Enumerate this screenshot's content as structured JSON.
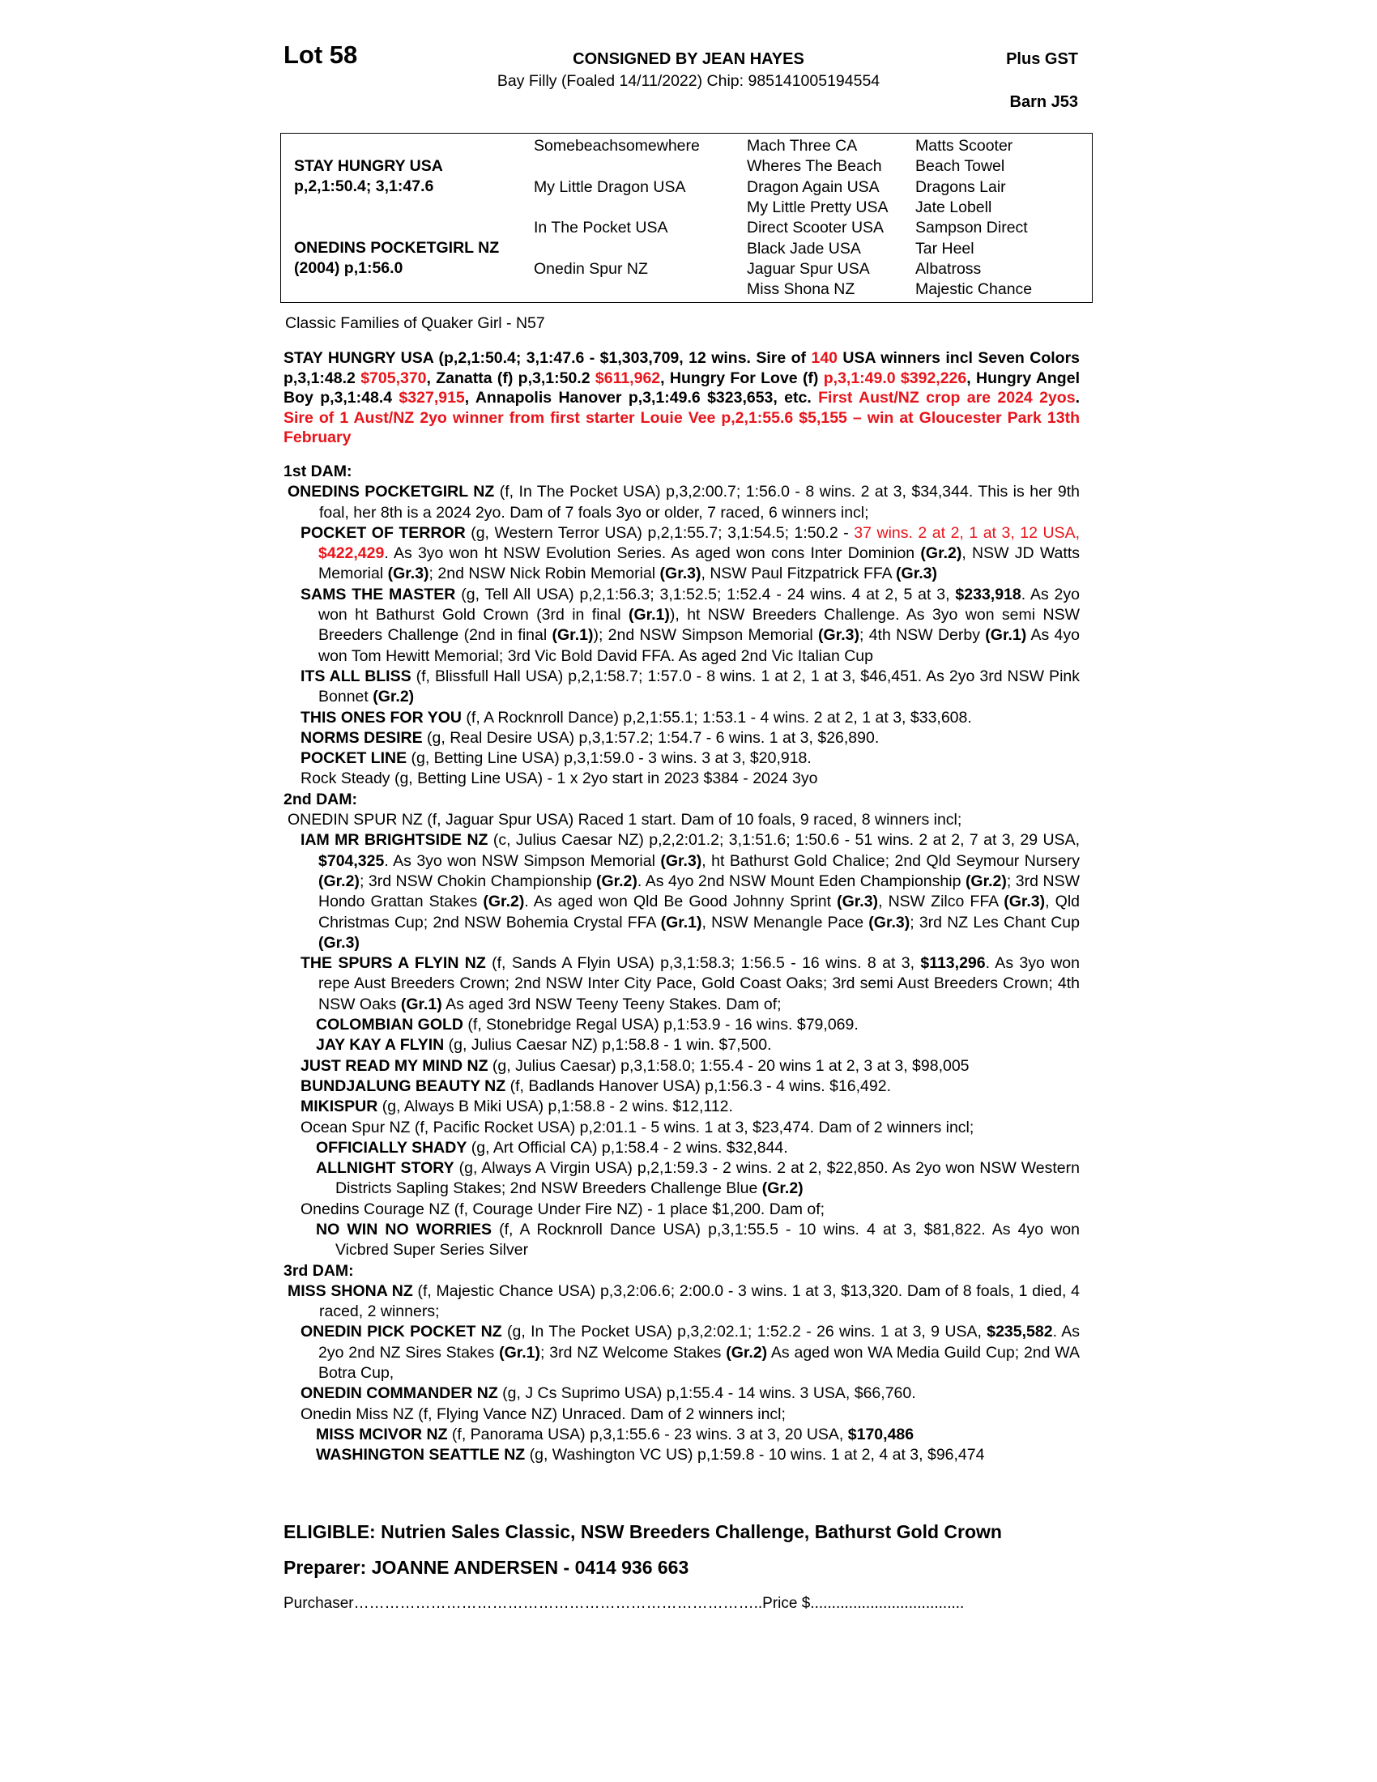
{
  "header": {
    "lot": "Lot 58",
    "consigned": "CONSIGNED BY JEAN HAYES",
    "plus_gst": "Plus GST",
    "description": "Bay Filly (Foaled 14/11/2022) Chip: 985141005194554",
    "barn": "Barn J53"
  },
  "pedigree": {
    "sire_name": "STAY HUNGRY USA",
    "sire_record": "p,2,1:50.4; 3,1:47.6",
    "dam_name": "ONEDINS POCKETGIRL NZ",
    "dam_record": "(2004) p,1:56.0",
    "col2": [
      "Somebeachsomewhere",
      "My Little Dragon USA",
      "In The Pocket USA",
      "Onedin Spur NZ"
    ],
    "col3": [
      "Mach Three CA",
      "Wheres The Beach",
      "Dragon Again USA",
      "My Little Pretty USA",
      "Direct Scooter USA",
      "Black Jade USA",
      "Jaguar Spur USA",
      "Miss Shona NZ"
    ],
    "col4": [
      "Matts Scooter",
      "Beach Towel",
      "Dragons Lair",
      "Jate Lobell",
      "Sampson Direct",
      "Tar Heel",
      "Albatross",
      "Majestic Chance"
    ]
  },
  "families": "Classic Families of Quaker Girl - N57",
  "sire_paragraph": [
    [
      "STAY HUNGRY USA (p,2,1:50.4; 3,1:47.6 - $1,303,709, 12 wins. Sire of ",
      ""
    ],
    [
      "140",
      "r"
    ],
    [
      " USA winners incl Seven Colors p,3,1:48.2 ",
      ""
    ],
    [
      "$705,370",
      "r"
    ],
    [
      ", Zanatta (f) p,3,1:50.2 ",
      ""
    ],
    [
      "$611,962",
      "r"
    ],
    [
      ", Hungry For Love (f) ",
      ""
    ],
    [
      "p,3,1:49.0 $392,226",
      "r"
    ],
    [
      ", Hungry Angel Boy p,3,1:48.4 ",
      ""
    ],
    [
      "$327,915",
      "r"
    ],
    [
      ", Annapolis Hanover p,3,1:49.6 $323,653, etc. ",
      ""
    ],
    [
      "First Aust/NZ  crop are 2024 2yos",
      "r"
    ],
    [
      ". ",
      ""
    ],
    [
      "Sire of 1 Aust/NZ 2yo winner from first starter Louie Vee p,2,1:55.6 $5,155 – win at Gloucester Park 13th February",
      "r"
    ]
  ],
  "dams": [
    {
      "heading": "1st DAM:",
      "entries": [
        {
          "level": 0,
          "segs": [
            [
              "ONEDINS POCKETGIRL NZ",
              "b"
            ],
            [
              " (f, In The Pocket USA) p,3,2:00.7; 1:56.0 - 8 wins. 2 at 3, $34,344. This is her 9th foal, her 8th is a 2024 2yo. Dam of 7 foals 3yo or older, 7 raced, 6 winners incl;",
              ""
            ]
          ]
        },
        {
          "level": 1,
          "segs": [
            [
              "POCKET OF TERROR",
              "b"
            ],
            [
              " (g, Western Terror USA) p,2,1:55.7; 3,1:54.5; 1:50.2 - ",
              ""
            ],
            [
              "37 wins. 2 at 2, 1 at 3, 12 USA, ",
              "r"
            ],
            [
              "$422,429",
              "rb"
            ],
            [
              ". As 3yo won ht NSW Evolution Series. As aged won cons Inter Dominion ",
              ""
            ],
            [
              "(Gr.2)",
              "b"
            ],
            [
              ", NSW JD Watts Memorial ",
              ""
            ],
            [
              "(Gr.3)",
              "b"
            ],
            [
              "; 2nd NSW Nick Robin Memorial ",
              ""
            ],
            [
              "(Gr.3)",
              "b"
            ],
            [
              ", NSW Paul Fitzpatrick FFA ",
              ""
            ],
            [
              "(Gr.3)",
              "b"
            ]
          ]
        },
        {
          "level": 1,
          "segs": [
            [
              "SAMS THE MASTER",
              "b"
            ],
            [
              " (g, Tell All USA) p,2,1:56.3; 3,1:52.5; 1:52.4 - 24 wins. 4 at 2, 5 at 3, ",
              ""
            ],
            [
              "$233,918",
              "b"
            ],
            [
              ". As 2yo won ht Bathurst Gold Crown (3rd in final ",
              ""
            ],
            [
              "(Gr.1)",
              "b"
            ],
            [
              "), ht NSW Breeders Challenge. As 3yo won semi NSW Breeders Challenge (2nd in final ",
              ""
            ],
            [
              "(Gr.1)",
              "b"
            ],
            [
              "); 2nd NSW Simpson Memorial ",
              ""
            ],
            [
              "(Gr.3)",
              "b"
            ],
            [
              "; 4th NSW Derby ",
              ""
            ],
            [
              "(Gr.1)",
              "b"
            ],
            [
              " As 4yo won Tom Hewitt Memorial; 3rd Vic Bold David FFA. As aged 2nd Vic Italian Cup",
              ""
            ]
          ]
        },
        {
          "level": 1,
          "segs": [
            [
              "ITS ALL BLISS",
              "b"
            ],
            [
              " (f, Blissfull Hall USA) p,2,1:58.7; 1:57.0 - 8 wins. 1 at 2, 1 at 3, $46,451. As 2yo 3rd NSW Pink Bonnet ",
              ""
            ],
            [
              "(Gr.2)",
              "b"
            ]
          ]
        },
        {
          "level": 1,
          "segs": [
            [
              "THIS ONES FOR YOU",
              "b"
            ],
            [
              " (f, A Rocknroll Dance) p,2,1:55.1; 1:53.1 - 4 wins. 2 at 2, 1 at 3, $33,608.",
              ""
            ]
          ]
        },
        {
          "level": 1,
          "segs": [
            [
              "NORMS DESIRE",
              "b"
            ],
            [
              " (g, Real Desire USA) p,3,1:57.2; 1:54.7 - 6 wins. 1 at 3, $26,890.",
              ""
            ]
          ]
        },
        {
          "level": 1,
          "segs": [
            [
              "POCKET LINE",
              "b"
            ],
            [
              " (g, Betting Line USA) p,3,1:59.0 - 3 wins. 3 at 3, $20,918.",
              ""
            ]
          ]
        },
        {
          "level": 1,
          "segs": [
            [
              "Rock Steady (g, Betting Line USA) - 1 x 2yo start in 2023 $384 - 2024 3yo",
              ""
            ]
          ]
        }
      ]
    },
    {
      "heading": "2nd DAM:",
      "entries": [
        {
          "level": 0,
          "segs": [
            [
              "ONEDIN SPUR NZ (f, Jaguar Spur USA) Raced 1 start. Dam of 10 foals, 9 raced, 8 winners incl;",
              ""
            ]
          ]
        },
        {
          "level": 1,
          "segs": [
            [
              "IAM MR BRIGHTSIDE NZ",
              "b"
            ],
            [
              " (c, Julius Caesar NZ) p,2,2:01.2; 3,1:51.6; 1:50.6 - 51 wins. 2 at 2, 7 at 3, 29 USA, ",
              ""
            ],
            [
              "$704,325",
              "b"
            ],
            [
              ". As 3yo won NSW Simpson Memorial ",
              ""
            ],
            [
              "(Gr.3)",
              "b"
            ],
            [
              ", ht Bathurst Gold Chalice; 2nd Qld Seymour Nursery ",
              ""
            ],
            [
              "(Gr.2)",
              "b"
            ],
            [
              "; 3rd NSW Chokin Championship ",
              ""
            ],
            [
              "(Gr.2)",
              "b"
            ],
            [
              ". As 4yo 2nd NSW Mount Eden Championship ",
              ""
            ],
            [
              "(Gr.2)",
              "b"
            ],
            [
              "; 3rd NSW Hondo Grattan Stakes ",
              ""
            ],
            [
              "(Gr.2)",
              "b"
            ],
            [
              ". As aged won Qld Be Good Johnny Sprint ",
              ""
            ],
            [
              "(Gr.3)",
              "b"
            ],
            [
              ", NSW Zilco FFA ",
              ""
            ],
            [
              "(Gr.3)",
              "b"
            ],
            [
              ", Qld Christmas Cup; 2nd NSW Bohemia Crystal FFA ",
              ""
            ],
            [
              "(Gr.1)",
              "b"
            ],
            [
              ", NSW Menangle Pace ",
              ""
            ],
            [
              "(Gr.3)",
              "b"
            ],
            [
              "; 3rd NZ Les Chant Cup ",
              ""
            ],
            [
              "(Gr.3)",
              "b"
            ]
          ]
        },
        {
          "level": 1,
          "segs": [
            [
              "THE SPURS A FLYIN NZ",
              "b"
            ],
            [
              " (f, Sands A Flyin USA) p,3,1:58.3; 1:56.5 - 16 wins. 8 at 3, ",
              ""
            ],
            [
              "$113,296",
              "b"
            ],
            [
              ". As 3yo won repe Aust Breeders Crown; 2nd NSW Inter City Pace, Gold Coast Oaks; 3rd semi Aust Breeders Crown; 4th NSW Oaks ",
              ""
            ],
            [
              "(Gr.1)",
              "b"
            ],
            [
              " As aged 3rd NSW Teeny Teeny Stakes. Dam of;",
              ""
            ]
          ]
        },
        {
          "level": 2,
          "segs": [
            [
              "COLOMBIAN GOLD",
              "b"
            ],
            [
              " (f, Stonebridge Regal USA) p,1:53.9 - 16 wins. $79,069.",
              ""
            ]
          ]
        },
        {
          "level": 2,
          "segs": [
            [
              "JAY KAY A FLYIN",
              "b"
            ],
            [
              " (g, Julius Caesar NZ) p,1:58.8 - 1 win. $7,500.",
              ""
            ]
          ]
        },
        {
          "level": 1,
          "segs": [
            [
              "JUST READ MY MIND NZ",
              "b"
            ],
            [
              " (g, Julius Caesar) p,3,1:58.0; 1:55.4 - 20 wins 1 at 2, 3 at 3, $98,005",
              ""
            ]
          ]
        },
        {
          "level": 1,
          "segs": [
            [
              "BUNDJALUNG BEAUTY NZ",
              "b"
            ],
            [
              " (f, Badlands Hanover USA) p,1:56.3 - 4 wins. $16,492.",
              ""
            ]
          ]
        },
        {
          "level": 1,
          "segs": [
            [
              "MIKISPUR",
              "b"
            ],
            [
              " (g, Always B Miki USA) p,1:58.8 - 2 wins. $12,112.",
              ""
            ]
          ]
        },
        {
          "level": 1,
          "segs": [
            [
              "Ocean Spur NZ (f, Pacific Rocket USA) p,2:01.1 - 5 wins. 1 at 3, $23,474. Dam of 2 winners incl;",
              ""
            ]
          ]
        },
        {
          "level": 2,
          "segs": [
            [
              "OFFICIALLY SHADY",
              "b"
            ],
            [
              " (g, Art Official CA) p,1:58.4 - 2 wins. $32,844.",
              ""
            ]
          ]
        },
        {
          "level": 2,
          "segs": [
            [
              "ALLNIGHT STORY",
              "b"
            ],
            [
              " (g, Always A Virgin USA) p,2,1:59.3 - 2 wins. 2 at 2, $22,850. As 2yo won NSW Western Districts Sapling Stakes; 2nd NSW Breeders Challenge Blue ",
              ""
            ],
            [
              "(Gr.2)",
              "b"
            ]
          ]
        },
        {
          "level": 1,
          "segs": [
            [
              "Onedins Courage NZ (f, Courage Under Fire NZ) - 1 place $1,200. Dam of;",
              ""
            ]
          ]
        },
        {
          "level": 2,
          "segs": [
            [
              "NO WIN NO WORRIES",
              "b"
            ],
            [
              " (f, A Rocknroll Dance USA) p,3,1:55.5 - 10 wins. 4 at 3, $81,822. As 4yo won Vicbred Super Series Silver",
              ""
            ]
          ]
        }
      ]
    },
    {
      "heading": "3rd DAM:",
      "entries": [
        {
          "level": 0,
          "segs": [
            [
              "MISS SHONA NZ",
              "b"
            ],
            [
              " (f, Majestic Chance USA) p,3,2:06.6; 2:00.0 - 3 wins. 1 at 3, $13,320. Dam of 8 foals, 1 died, 4 raced, 2 winners;",
              ""
            ]
          ]
        },
        {
          "level": 1,
          "segs": [
            [
              "ONEDIN PICK POCKET NZ",
              "b"
            ],
            [
              " (g, In The Pocket USA) p,3,2:02.1; 1:52.2 - 26 wins. 1 at 3, 9 USA, ",
              ""
            ],
            [
              "$235,582",
              "b"
            ],
            [
              ". As 2yo 2nd NZ Sires Stakes ",
              ""
            ],
            [
              "(Gr.1)",
              "b"
            ],
            [
              "; 3rd NZ Welcome Stakes ",
              ""
            ],
            [
              "(Gr.2)",
              "b"
            ],
            [
              " As aged won WA Media Guild Cup; 2nd WA Botra Cup,",
              ""
            ]
          ]
        },
        {
          "level": 1,
          "segs": [
            [
              "ONEDIN COMMANDER NZ",
              "b"
            ],
            [
              " (g, J Cs Suprimo USA) p,1:55.4 - 14 wins. 3 USA, $66,760.",
              ""
            ]
          ]
        },
        {
          "level": 1,
          "segs": [
            [
              "Onedin Miss NZ (f, Flying Vance NZ) Unraced. Dam of 2 winners incl;",
              ""
            ]
          ]
        },
        {
          "level": 2,
          "segs": [
            [
              "MISS MCIVOR NZ",
              "b"
            ],
            [
              " (f, Panorama USA) p,3,1:55.6 - 23 wins. 3 at 3, 20 USA, ",
              ""
            ],
            [
              "$170,486",
              "b"
            ]
          ]
        },
        {
          "level": 2,
          "segs": [
            [
              "WASHINGTON SEATTLE NZ",
              "b"
            ],
            [
              " (g, Washington VC US) p,1:59.8 - 10 wins. 1 at 2, 4 at 3, $96,474",
              ""
            ]
          ]
        }
      ]
    }
  ],
  "eligible": "ELIGIBLE: Nutrien Sales Classic, NSW Breeders Challenge, Bathurst Gold Crown",
  "preparer": "Preparer: JOANNE ANDERSEN - 0414 936 663",
  "purchaser": "Purchaser……………………………………………………………………..Price $....................................",
  "colors": {
    "highlight": "#e8141b",
    "text": "#000000"
  }
}
